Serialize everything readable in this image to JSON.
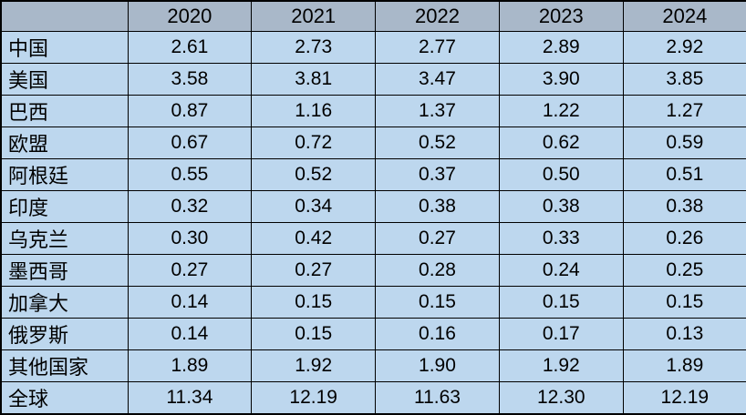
{
  "table": {
    "corner_label": "",
    "columns": [
      "2020",
      "2021",
      "2022",
      "2023",
      "2024"
    ],
    "rows": [
      {
        "label": "中国",
        "values": [
          "2.61",
          "2.73",
          "2.77",
          "2.89",
          "2.92"
        ]
      },
      {
        "label": "美国",
        "values": [
          "3.58",
          "3.81",
          "3.47",
          "3.90",
          "3.85"
        ]
      },
      {
        "label": "巴西",
        "values": [
          "0.87",
          "1.16",
          "1.37",
          "1.22",
          "1.27"
        ]
      },
      {
        "label": "欧盟",
        "values": [
          "0.67",
          "0.72",
          "0.52",
          "0.62",
          "0.59"
        ]
      },
      {
        "label": "阿根廷",
        "values": [
          "0.55",
          "0.52",
          "0.37",
          "0.50",
          "0.51"
        ]
      },
      {
        "label": "印度",
        "values": [
          "0.32",
          "0.34",
          "0.38",
          "0.38",
          "0.38"
        ]
      },
      {
        "label": "乌克兰",
        "values": [
          "0.30",
          "0.42",
          "0.27",
          "0.33",
          "0.26"
        ]
      },
      {
        "label": "墨西哥",
        "values": [
          "0.27",
          "0.27",
          "0.28",
          "0.24",
          "0.25"
        ]
      },
      {
        "label": "加拿大",
        "values": [
          "0.14",
          "0.15",
          "0.15",
          "0.15",
          "0.15"
        ]
      },
      {
        "label": "俄罗斯",
        "values": [
          "0.14",
          "0.15",
          "0.16",
          "0.17",
          "0.13"
        ]
      },
      {
        "label": "其他国家",
        "values": [
          "1.89",
          "1.92",
          "1.90",
          "1.92",
          "1.89"
        ]
      },
      {
        "label": "全球",
        "values": [
          "11.34",
          "12.19",
          "11.63",
          "12.30",
          "12.19"
        ]
      }
    ],
    "colors": {
      "header_bg": "#a9b8c9",
      "row_bg": "#bdd7ee",
      "border": "#000000",
      "text": "#000000"
    }
  },
  "chart_data": {
    "type": "table",
    "title": "",
    "categories": [
      "2020",
      "2021",
      "2022",
      "2023",
      "2024"
    ],
    "series": [
      {
        "name": "中国",
        "values": [
          2.61,
          2.73,
          2.77,
          2.89,
          2.92
        ]
      },
      {
        "name": "美国",
        "values": [
          3.58,
          3.81,
          3.47,
          3.9,
          3.85
        ]
      },
      {
        "name": "巴西",
        "values": [
          0.87,
          1.16,
          1.37,
          1.22,
          1.27
        ]
      },
      {
        "name": "欧盟",
        "values": [
          0.67,
          0.72,
          0.52,
          0.62,
          0.59
        ]
      },
      {
        "name": "阿根廷",
        "values": [
          0.55,
          0.52,
          0.37,
          0.5,
          0.51
        ]
      },
      {
        "name": "印度",
        "values": [
          0.32,
          0.34,
          0.38,
          0.38,
          0.38
        ]
      },
      {
        "name": "乌克兰",
        "values": [
          0.3,
          0.42,
          0.27,
          0.33,
          0.26
        ]
      },
      {
        "name": "墨西哥",
        "values": [
          0.27,
          0.27,
          0.28,
          0.24,
          0.25
        ]
      },
      {
        "name": "加拿大",
        "values": [
          0.14,
          0.15,
          0.15,
          0.15,
          0.15
        ]
      },
      {
        "name": "俄罗斯",
        "values": [
          0.14,
          0.15,
          0.16,
          0.17,
          0.13
        ]
      },
      {
        "name": "其他国家",
        "values": [
          1.89,
          1.92,
          1.9,
          1.92,
          1.89
        ]
      },
      {
        "name": "全球",
        "values": [
          11.34,
          12.19,
          11.63,
          12.3,
          12.19
        ]
      }
    ]
  }
}
